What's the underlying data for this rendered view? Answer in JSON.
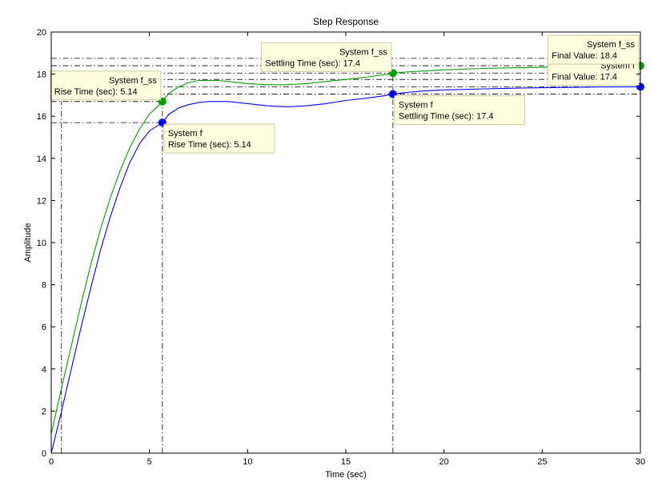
{
  "chart_data": {
    "type": "line",
    "title": "Step Response",
    "xlabel": "Time (sec)",
    "ylabel": "Amplitude",
    "xlim": [
      0,
      30
    ],
    "ylim": [
      0,
      20
    ],
    "x_ticks": [
      0,
      5,
      10,
      15,
      20,
      25,
      30
    ],
    "y_ticks": [
      0,
      2,
      4,
      6,
      8,
      10,
      12,
      14,
      16,
      18,
      20
    ],
    "grid": false,
    "series": [
      {
        "name": "System f_ss",
        "color": "#00a000",
        "x": [
          0,
          0.5,
          1,
          1.5,
          2,
          2.5,
          3,
          3.5,
          4,
          4.5,
          5,
          5.5,
          5.66,
          6,
          6.5,
          7,
          7.5,
          8,
          8.5,
          9,
          9.5,
          10,
          11,
          12,
          13,
          14,
          15,
          16,
          17,
          17.4,
          18,
          19,
          20,
          22,
          24,
          26,
          28,
          30
        ],
        "y": [
          0.9,
          3.0,
          5.0,
          7.0,
          8.9,
          10.6,
          12.1,
          13.4,
          14.5,
          15.4,
          16.1,
          16.55,
          16.7,
          17.1,
          17.4,
          17.6,
          17.7,
          17.7,
          17.7,
          17.65,
          17.6,
          17.55,
          17.5,
          17.5,
          17.55,
          17.65,
          17.75,
          17.85,
          17.98,
          18.05,
          18.1,
          18.15,
          18.2,
          18.27,
          18.31,
          18.34,
          18.37,
          18.4
        ]
      },
      {
        "name": "System f",
        "color": "#0000ff",
        "x": [
          0,
          0.5,
          1,
          1.5,
          2,
          2.5,
          3,
          3.5,
          4,
          4.5,
          5,
          5.5,
          5.66,
          6,
          6.5,
          7,
          7.5,
          8,
          8.5,
          9,
          9.5,
          10,
          11,
          12,
          13,
          14,
          15,
          16,
          17,
          17.4,
          18,
          19,
          20,
          22,
          24,
          26,
          28,
          30
        ],
        "y": [
          0.0,
          1.9,
          3.9,
          5.9,
          7.8,
          9.6,
          11.2,
          12.6,
          13.8,
          14.7,
          15.3,
          15.6,
          15.7,
          16.1,
          16.4,
          16.55,
          16.65,
          16.7,
          16.7,
          16.7,
          16.65,
          16.6,
          16.5,
          16.45,
          16.5,
          16.6,
          16.75,
          16.85,
          16.98,
          17.05,
          17.12,
          17.2,
          17.25,
          17.3,
          17.34,
          17.37,
          17.39,
          17.4
        ]
      }
    ],
    "markers": [
      {
        "series": "System f_ss",
        "x": 5.66,
        "y": 16.7,
        "color": "#00a000"
      },
      {
        "series": "System f_ss",
        "x": 17.4,
        "y": 18.05,
        "color": "#00a000"
      },
      {
        "series": "System f_ss",
        "x": 30,
        "y": 18.4,
        "color": "#00a000"
      },
      {
        "series": "System f",
        "x": 5.66,
        "y": 15.7,
        "color": "#0000ff"
      },
      {
        "series": "System f",
        "x": 17.4,
        "y": 17.05,
        "color": "#0000ff"
      },
      {
        "series": "System f",
        "x": 30,
        "y": 17.4,
        "color": "#0000ff"
      }
    ],
    "guide_lines": {
      "horizontal": [
        {
          "y": 16.7,
          "x_from": 0,
          "x_to": 5.66
        },
        {
          "y": 15.7,
          "x_from": 0,
          "x_to": 5.66
        },
        {
          "y": 18.75,
          "x_from": 0,
          "x_to": 30
        },
        {
          "y": 18.4,
          "x_from": 0,
          "x_to": 30
        },
        {
          "y": 18.05,
          "x_from": 0,
          "x_to": 30
        },
        {
          "y": 17.75,
          "x_from": 0,
          "x_to": 30
        },
        {
          "y": 17.4,
          "x_from": 0,
          "x_to": 30
        },
        {
          "y": 17.05,
          "x_from": 0,
          "x_to": 30
        }
      ],
      "vertical": [
        {
          "x": 0.52,
          "y_from": 0,
          "y_to": 16.7
        },
        {
          "x": 5.66,
          "y_from": 0,
          "y_to": 16.7
        },
        {
          "x": 17.4,
          "y_from": 0,
          "y_to": 18.05
        }
      ]
    },
    "annotations": [
      {
        "lines": [
          "System f_ss",
          "Rise Time (sec): 5.14"
        ],
        "anchor": "upper-left-of-point",
        "x": 5.66,
        "y": 16.7
      },
      {
        "lines": [
          "System f",
          "Rise Time (sec): 5.14"
        ],
        "anchor": "lower-right-of-point",
        "x": 5.66,
        "y": 15.7
      },
      {
        "lines": [
          "System f_ss",
          "Settling Time (sec): 17.4"
        ],
        "anchor": "upper-left-of-point",
        "x": 17.4,
        "y": 18.05
      },
      {
        "lines": [
          "System f",
          "Settling Time (sec): 17.4"
        ],
        "anchor": "lower-right-of-point",
        "x": 17.4,
        "y": 17.05
      },
      {
        "lines": [
          "System f",
          "Final Value: 17.4"
        ],
        "anchor": "upper-left-of-point",
        "x": 30,
        "y": 17.4
      },
      {
        "lines": [
          "System f_ss",
          "Final Value: 18.4"
        ],
        "anchor": "upper-left-of-point",
        "x": 30,
        "y": 18.4
      }
    ]
  }
}
